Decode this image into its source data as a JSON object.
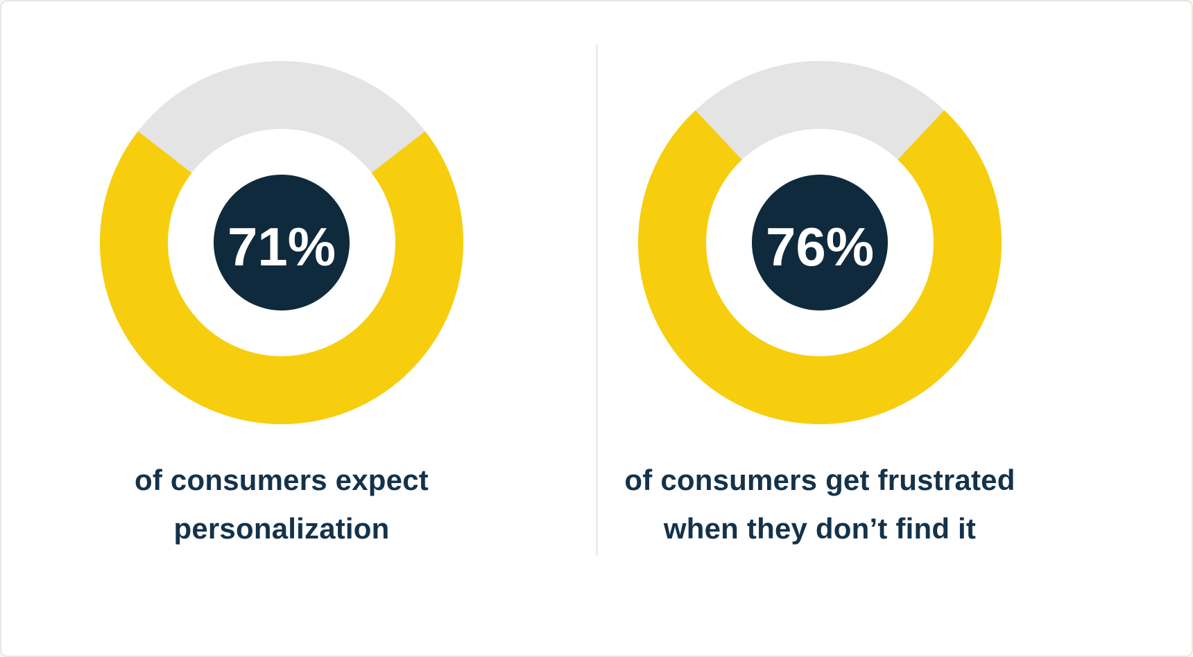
{
  "page": {
    "background_color": "#ffffff",
    "border_color": "#e6e6e3",
    "divider_color": "#ececec"
  },
  "chart_data": [
    {
      "type": "donut",
      "value": 71,
      "max": 100,
      "center_label": "71%",
      "caption_lines": [
        "of consumers expect",
        "personalization"
      ],
      "filled_color": "#f7ce0d",
      "track_color": "#e4e4e4",
      "hub_color": "#0f2a3d",
      "center_label_color": "#ffffff",
      "caption_color": "#14324a",
      "gap_position": "top",
      "legend": "none"
    },
    {
      "type": "donut",
      "value": 76,
      "max": 100,
      "center_label": "76%",
      "caption_lines": [
        "of consumers get frustrated",
        "when they don’t find it"
      ],
      "filled_color": "#f7ce0d",
      "track_color": "#e4e4e4",
      "hub_color": "#0f2a3d",
      "center_label_color": "#ffffff",
      "caption_color": "#14324a",
      "gap_position": "top",
      "legend": "none"
    }
  ]
}
